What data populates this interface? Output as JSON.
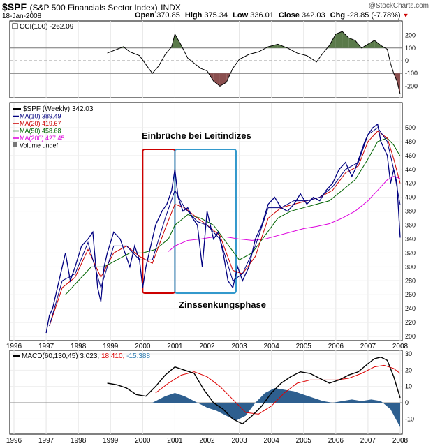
{
  "header": {
    "symbol": "$SPF",
    "name": "(S&P 500 Financials Sector Index)",
    "exchange": "INDX",
    "date": "18-Jan-2008",
    "copyright": "@StockCharts.com",
    "open_label": "Open",
    "open": "370.85",
    "high_label": "High",
    "high": "375.34",
    "low_label": "Low",
    "low": "336.01",
    "close_label": "Close",
    "close": "342.03",
    "chg_label": "Chg",
    "chg": "-28.85 (-7.78%)"
  },
  "colors": {
    "price": "#000080",
    "ma10": "#000080",
    "ma20": "#cc0000",
    "ma50": "#006400",
    "ma200": "#dd00dd",
    "cci_pos_fill": "#5a7a4a",
    "cci_neg_fill": "#8b4f4f",
    "macd": "#000000",
    "signal": "#dd0000",
    "hist": "#2e5f8f",
    "box_red": "#cc0000",
    "box_blue": "#3399cc"
  },
  "chart_data": [
    {
      "type": "line",
      "panel": "cci",
      "legend": "CCI(100) -262.09",
      "ylim": [
        -250,
        250
      ],
      "yticks": [
        "200",
        "100",
        "0",
        "-100",
        "-200"
      ],
      "reference_lines": [
        100,
        0,
        -100
      ],
      "x": [
        1998.9,
        1999.2,
        1999.4,
        1999.6,
        1999.9,
        2000.1,
        2000.3,
        2000.5,
        2000.7,
        2000.9,
        2001.0,
        2001.2,
        2001.4,
        2001.6,
        2001.8,
        2002.0,
        2002.2,
        2002.4,
        2002.6,
        2002.8,
        2003.0,
        2003.3,
        2003.6,
        2003.9,
        2004.2,
        2004.5,
        2004.8,
        2005.1,
        2005.4,
        2005.6,
        2005.8,
        2006.0,
        2006.2,
        2006.4,
        2006.6,
        2006.8,
        2007.0,
        2007.2,
        2007.4,
        2007.6,
        2007.7,
        2007.8,
        2007.9,
        2008.0
      ],
      "values": [
        60,
        90,
        110,
        70,
        40,
        -30,
        -100,
        -40,
        50,
        110,
        210,
        120,
        20,
        -20,
        -60,
        -80,
        -160,
        -200,
        -170,
        -60,
        10,
        50,
        70,
        110,
        130,
        100,
        60,
        40,
        -10,
        60,
        120,
        210,
        230,
        180,
        160,
        100,
        130,
        160,
        120,
        90,
        -20,
        -100,
        -160,
        -262
      ]
    },
    {
      "type": "line",
      "panel": "price",
      "legend": [
        "$SPF (Weekly) 342.03",
        "MA(10) 389.49",
        "MA(20) 419.67",
        "MA(50) 458.68",
        "MA(200) 427.45",
        "Volume undef"
      ],
      "ylim": [
        200,
        520
      ],
      "yticks": [
        "500",
        "480",
        "460",
        "440",
        "420",
        "400",
        "380",
        "360",
        "340",
        "320",
        "300",
        "280",
        "260",
        "240",
        "220",
        "200"
      ],
      "x_ticks": [
        "1996",
        "1997",
        "1998",
        "1999",
        "2000",
        "2001",
        "2002",
        "2003",
        "2004",
        "2005",
        "2006",
        "2007",
        "2008"
      ],
      "annotations": [
        "Einbrüche bei Leitindizes",
        "Zinssenkungsphase"
      ],
      "highlight_ranges": [
        [
          2000.0,
          2001.0
        ],
        [
          2001.0,
          2002.9
        ]
      ],
      "series": [
        {
          "name": "$SPF (Weekly)",
          "x": [
            1997.0,
            1997.1,
            1997.2,
            1997.35,
            1997.5,
            1997.6,
            1997.75,
            1997.9,
            1998.1,
            1998.3,
            1998.45,
            1998.6,
            1998.7,
            1998.8,
            1998.9,
            1999.1,
            1999.3,
            1999.45,
            1999.6,
            1999.75,
            1999.9,
            2000.0,
            2000.1,
            2000.25,
            2000.4,
            2000.6,
            2000.75,
            2000.9,
            2001.0,
            2001.1,
            2001.25,
            2001.4,
            2001.55,
            2001.7,
            2001.85,
            2002.0,
            2002.2,
            2002.35,
            2002.5,
            2002.65,
            2002.8,
            2002.95,
            2003.1,
            2003.3,
            2003.5,
            2003.7,
            2003.9,
            2004.1,
            2004.3,
            2004.5,
            2004.7,
            2004.9,
            2005.1,
            2005.3,
            2005.5,
            2005.7,
            2005.9,
            2006.1,
            2006.3,
            2006.5,
            2006.6,
            2006.75,
            2006.9,
            2007.0,
            2007.15,
            2007.3,
            2007.4,
            2007.5,
            2007.6,
            2007.7,
            2007.8,
            2007.9,
            2007.95,
            2008.0
          ],
          "values": [
            205,
            230,
            240,
            270,
            300,
            320,
            280,
            300,
            330,
            340,
            350,
            270,
            250,
            300,
            320,
            350,
            340,
            320,
            300,
            330,
            310,
            270,
            300,
            330,
            360,
            380,
            390,
            410,
            440,
            400,
            380,
            385,
            370,
            360,
            300,
            380,
            340,
            350,
            320,
            280,
            270,
            300,
            280,
            300,
            340,
            360,
            390,
            400,
            385,
            380,
            390,
            405,
            390,
            400,
            395,
            410,
            420,
            440,
            450,
            430,
            440,
            460,
            480,
            490,
            500,
            505,
            480,
            470,
            460,
            420,
            440,
            420,
            380,
            342
          ]
        },
        {
          "name": "MA(10)",
          "x": [
            1997.1,
            1997.5,
            1997.9,
            1998.3,
            1998.7,
            1999.1,
            1999.5,
            1999.9,
            2000.3,
            2000.7,
            2001.0,
            2001.3,
            2001.7,
            2002.0,
            2002.4,
            2002.8,
            2003.1,
            2003.5,
            2003.9,
            2004.3,
            2004.7,
            2005.1,
            2005.5,
            2005.9,
            2006.3,
            2006.7,
            2007.0,
            2007.3,
            2007.6,
            2007.8,
            2008.0
          ],
          "values": [
            215,
            280,
            290,
            335,
            270,
            330,
            330,
            310,
            310,
            370,
            410,
            385,
            365,
            360,
            340,
            280,
            290,
            330,
            385,
            385,
            395,
            395,
            400,
            415,
            440,
            450,
            490,
            500,
            480,
            440,
            389
          ]
        },
        {
          "name": "MA(20)",
          "x": [
            1997.1,
            1997.5,
            1997.9,
            1998.3,
            1998.7,
            1999.1,
            1999.5,
            1999.9,
            2000.3,
            2000.7,
            2001.0,
            2001.3,
            2001.7,
            2002.0,
            2002.4,
            2002.8,
            2003.1,
            2003.5,
            2003.9,
            2004.3,
            2004.7,
            2005.1,
            2005.5,
            2005.9,
            2006.3,
            2006.7,
            2007.0,
            2007.3,
            2007.6,
            2007.8,
            2008.0
          ],
          "values": [
            215,
            270,
            285,
            325,
            285,
            320,
            330,
            315,
            305,
            355,
            390,
            385,
            370,
            360,
            345,
            295,
            290,
            315,
            370,
            385,
            390,
            395,
            400,
            410,
            435,
            445,
            480,
            495,
            485,
            455,
            420
          ]
        },
        {
          "name": "MA(50)",
          "x": [
            1997.6,
            1998.0,
            1998.4,
            1998.8,
            1999.2,
            1999.6,
            2000.0,
            2000.4,
            2000.8,
            2001.0,
            2001.4,
            2001.8,
            2002.2,
            2002.6,
            2003.0,
            2003.4,
            2003.8,
            2004.2,
            2004.6,
            2005.0,
            2005.4,
            2005.8,
            2006.2,
            2006.6,
            2007.0,
            2007.3,
            2007.6,
            2007.8,
            2008.0
          ],
          "values": [
            260,
            280,
            300,
            300,
            310,
            320,
            320,
            325,
            340,
            360,
            375,
            370,
            360,
            335,
            310,
            320,
            345,
            370,
            380,
            385,
            390,
            395,
            410,
            425,
            455,
            480,
            485,
            475,
            459
          ]
        },
        {
          "name": "MA(200)",
          "x": [
            2000.8,
            2001.0,
            2001.4,
            2001.8,
            2002.2,
            2002.6,
            2003.0,
            2003.4,
            2003.8,
            2004.2,
            2004.6,
            2005.0,
            2005.4,
            2005.8,
            2006.2,
            2006.6,
            2007.0,
            2007.3,
            2007.6,
            2007.8,
            2008.0
          ],
          "values": [
            322,
            330,
            338,
            340,
            343,
            343,
            340,
            338,
            340,
            345,
            350,
            355,
            358,
            362,
            370,
            380,
            395,
            410,
            425,
            430,
            427
          ]
        }
      ]
    },
    {
      "type": "line",
      "panel": "macd",
      "legend_name": "MACD(60,130,45)",
      "legend_macd": "3.023",
      "legend_signal": "18.410",
      "legend_hist": "-15.388",
      "ylim": [
        -15,
        30
      ],
      "yticks": [
        "30",
        "20",
        "10",
        "0",
        "-10"
      ],
      "x_ticks": [
        "1996",
        "1997",
        "1998",
        "1999",
        "2000",
        "2001",
        "2002",
        "2003",
        "2004",
        "2005",
        "2006",
        "2007",
        "2008"
      ],
      "series": [
        {
          "name": "MACD",
          "x": [
            1998.9,
            1999.2,
            1999.5,
            1999.8,
            2000.1,
            2000.4,
            2000.7,
            2001.0,
            2001.3,
            2001.6,
            2001.9,
            2002.2,
            2002.5,
            2002.8,
            2003.1,
            2003.4,
            2003.7,
            2004.0,
            2004.3,
            2004.6,
            2004.9,
            2005.2,
            2005.5,
            2005.8,
            2006.1,
            2006.4,
            2006.7,
            2007.0,
            2007.2,
            2007.4,
            2007.6,
            2007.8,
            2008.0
          ],
          "values": [
            12,
            11,
            9,
            5,
            4,
            10,
            17,
            22,
            20,
            18,
            8,
            0,
            -4,
            -10,
            -13,
            -8,
            -2,
            6,
            12,
            16,
            19,
            18,
            15,
            12,
            14,
            17,
            19,
            24,
            27,
            28,
            26,
            16,
            3
          ]
        },
        {
          "name": "Signal",
          "x": [
            2000.4,
            2000.8,
            2001.2,
            2001.6,
            2002.0,
            2002.4,
            2002.8,
            2003.2,
            2003.6,
            2004.0,
            2004.4,
            2004.8,
            2005.2,
            2005.6,
            2006.0,
            2006.4,
            2006.8,
            2007.2,
            2007.5,
            2007.8,
            2008.0
          ],
          "values": [
            6,
            12,
            17,
            19,
            16,
            10,
            2,
            -6,
            -7,
            -2,
            6,
            12,
            14,
            14,
            14,
            15,
            18,
            22,
            23,
            21,
            18
          ]
        },
        {
          "name": "Histogram",
          "x": [
            2000.3,
            2000.7,
            2001.0,
            2001.3,
            2001.6,
            2002.0,
            2002.3,
            2002.6,
            2002.9,
            2003.2,
            2003.5,
            2003.8,
            2004.1,
            2004.4,
            2004.7,
            2005.0,
            2005.3,
            2005.6,
            2005.9,
            2006.2,
            2006.5,
            2006.8,
            2007.1,
            2007.4,
            2007.7,
            2008.0
          ],
          "values": [
            0,
            4,
            6,
            4,
            1,
            -3,
            -5,
            -8,
            -11,
            -8,
            0,
            6,
            9,
            8,
            7,
            5,
            3,
            1,
            0,
            1,
            2,
            1,
            2,
            1,
            -4,
            -15
          ]
        }
      ]
    }
  ]
}
